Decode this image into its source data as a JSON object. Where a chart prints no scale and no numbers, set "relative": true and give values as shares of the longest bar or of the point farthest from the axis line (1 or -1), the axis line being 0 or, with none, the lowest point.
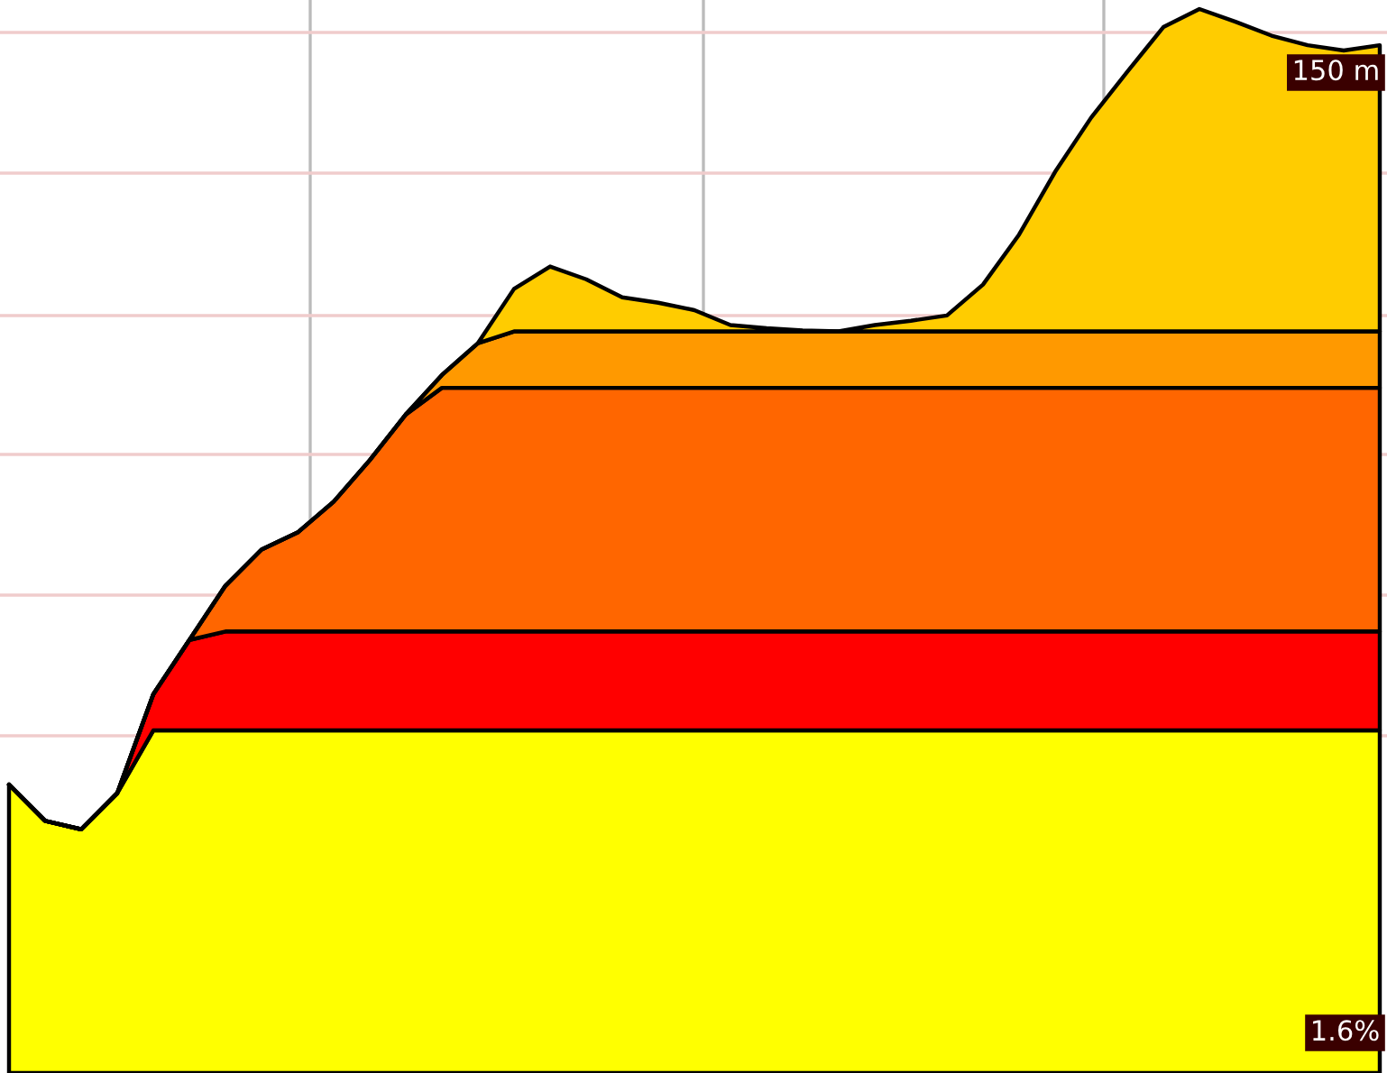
{
  "chart_data": {
    "type": "area",
    "stacked": true,
    "relative": true,
    "grid": true,
    "categories": [
      null,
      null,
      null,
      null,
      null,
      null,
      null,
      null,
      null,
      null,
      null,
      null,
      null,
      null,
      null,
      null,
      null,
      null,
      null,
      null,
      null,
      null,
      null,
      null,
      null,
      null,
      null,
      null,
      null,
      null,
      null,
      null,
      null,
      null,
      null,
      null,
      null,
      null,
      null
    ],
    "series": [
      {
        "color": "#ffff00",
        "values": [
          0.271,
          0.237,
          0.229,
          0.263,
          0.322,
          0.322,
          0.322,
          0.322,
          0.322,
          0.322,
          0.322,
          0.322,
          0.322,
          0.322,
          0.322,
          0.322,
          0.322,
          0.322,
          0.322,
          0.322,
          0.322,
          0.322,
          0.322,
          0.322,
          0.322,
          0.322,
          0.322,
          0.322,
          0.322,
          0.322,
          0.322,
          0.322,
          0.322,
          0.322,
          0.322,
          0.322,
          0.322,
          0.322,
          0.322
        ]
      },
      {
        "color": "#ff0000",
        "values": [
          0,
          0,
          0,
          0,
          0.034,
          0.085,
          0.093,
          0.093,
          0.093,
          0.093,
          0.093,
          0.093,
          0.093,
          0.093,
          0.093,
          0.093,
          0.093,
          0.093,
          0.093,
          0.093,
          0.093,
          0.093,
          0.093,
          0.093,
          0.093,
          0.093,
          0.093,
          0.093,
          0.093,
          0.093,
          0.093,
          0.093,
          0.093,
          0.093,
          0.093,
          0.093,
          0.093,
          0.093,
          0.093
        ]
      },
      {
        "color": "#ff6600",
        "values": [
          0,
          0,
          0,
          0,
          0,
          0,
          0.043,
          0.077,
          0.093,
          0.122,
          0.161,
          0.204,
          0.229,
          0.229,
          0.229,
          0.229,
          0.229,
          0.229,
          0.229,
          0.229,
          0.229,
          0.229,
          0.229,
          0.229,
          0.229,
          0.229,
          0.229,
          0.229,
          0.229,
          0.229,
          0.229,
          0.229,
          0.229,
          0.229,
          0.229,
          0.229,
          0.229,
          0.229,
          0.229
        ]
      },
      {
        "color": "#ff9900",
        "values": [
          0,
          0,
          0,
          0,
          0,
          0,
          0,
          0,
          0,
          0,
          0,
          0,
          0.012,
          0.042,
          0.053,
          0.053,
          0.053,
          0.053,
          0.053,
          0.053,
          0.053,
          0.053,
          0.053,
          0.053,
          0.053,
          0.053,
          0.053,
          0.053,
          0.053,
          0.053,
          0.053,
          0.053,
          0.053,
          0.053,
          0.053,
          0.053,
          0.053,
          0.053,
          0.053
        ]
      },
      {
        "color": "#ffcc00",
        "values": [
          0,
          0,
          0,
          0,
          0,
          0,
          0,
          0,
          0,
          0,
          0,
          0,
          0,
          0,
          0.04,
          0.061,
          0.049,
          0.032,
          0.027,
          0.02,
          0.006,
          0.003,
          0.001,
          0,
          0.006,
          0.01,
          0.015,
          0.044,
          0.091,
          0.15,
          0.201,
          0.244,
          0.286,
          0.303,
          0.291,
          0.278,
          0.269,
          0.264,
          0.269
        ]
      }
    ],
    "annotations": [
      "150 m",
      "1.6%"
    ]
  }
}
